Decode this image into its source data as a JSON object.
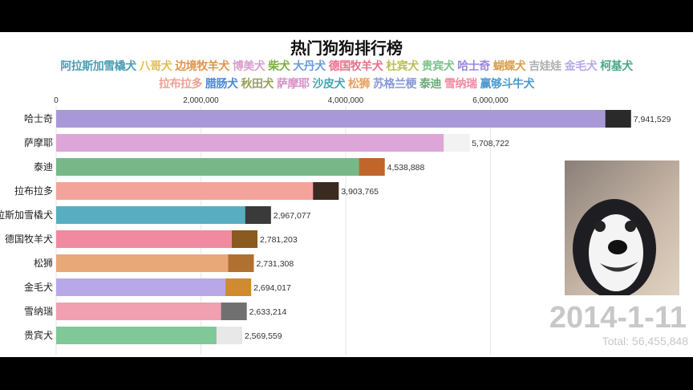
{
  "title": "热门狗狗排行榜",
  "legend_row1": [
    {
      "name": "阿拉斯加雪橇犬",
      "color": "#4a9fb5"
    },
    {
      "name": "八哥犬",
      "color": "#e0c050"
    },
    {
      "name": "边境牧羊犬",
      "color": "#e0934a"
    },
    {
      "name": "博美犬",
      "color": "#d9a0d0"
    },
    {
      "name": "柴犬",
      "color": "#7ab040"
    },
    {
      "name": "大丹犬",
      "color": "#6a9be0"
    },
    {
      "name": "德国牧羊犬",
      "color": "#e8708a"
    },
    {
      "name": "杜宾犬",
      "color": "#b8c050"
    },
    {
      "name": "贵宾犬",
      "color": "#7cc08a"
    },
    {
      "name": "哈士奇",
      "color": "#9a88d8"
    },
    {
      "name": "蝴蝶犬",
      "color": "#d8a050"
    },
    {
      "name": "吉娃娃",
      "color": "#b0b0b0"
    },
    {
      "name": "金毛犬",
      "color": "#b8a8e8"
    },
    {
      "name": "柯基犬",
      "color": "#4aa888"
    }
  ],
  "legend_row2": [
    {
      "name": "拉布拉多",
      "color": "#f0a090"
    },
    {
      "name": "腊肠犬",
      "color": "#4a88d0"
    },
    {
      "name": "秋田犬",
      "color": "#9aa060"
    },
    {
      "name": "萨摩耶",
      "color": "#d890c8"
    },
    {
      "name": "沙皮犬",
      "color": "#40a8b0"
    },
    {
      "name": "松狮",
      "color": "#e8a060"
    },
    {
      "name": "苏格兰梗",
      "color": "#8898d8"
    },
    {
      "name": "泰迪",
      "color": "#6aaa78"
    },
    {
      "name": "雪纳瑞",
      "color": "#f08aa0"
    },
    {
      "name": "赢够斗牛犬",
      "color": "#4a9ad0"
    }
  ],
  "date": "2014-1-11",
  "total": "Total: 56,455,848",
  "chart_data": {
    "type": "bar",
    "orientation": "horizontal",
    "xlim": [
      0,
      8000000
    ],
    "x_ticks": [
      0,
      2000000,
      4000000,
      6000000
    ],
    "x_tick_labels": [
      "0",
      "2,000,000",
      "4,000,000",
      "6,000,000"
    ],
    "grid": true,
    "categories": [
      "哈士奇",
      "萨摩耶",
      "泰迪",
      "拉布拉多",
      "阿拉斯加雪橇犬",
      "德国牧羊犬",
      "松狮",
      "金毛犬",
      "雪纳瑞",
      "贵宾犬"
    ],
    "values": [
      7941529,
      5708722,
      4538888,
      3903765,
      2967077,
      2781203,
      2731308,
      2694017,
      2633214,
      2569559
    ],
    "value_labels": [
      "7,941,529",
      "5,708,722",
      "4,538,888",
      "3,903,765",
      "2,967,077",
      "2,781,203",
      "2,731,308",
      "2,694,017",
      "2,633,214",
      "2,569,559"
    ],
    "colors": [
      "#a898d8",
      "#dea6d8",
      "#78b888",
      "#f4a39a",
      "#58aec0",
      "#f08aa0",
      "#e8a878",
      "#b8a8e8",
      "#f0a0b0",
      "#80c898"
    ],
    "thumb_colors": [
      "#2a2a2a",
      "#f2f2f2",
      "#c0662a",
      "#3a2a20",
      "#3a3a3a",
      "#8a5a20",
      "#b07030",
      "#d08a30",
      "#707070",
      "#e8e8e8"
    ]
  }
}
